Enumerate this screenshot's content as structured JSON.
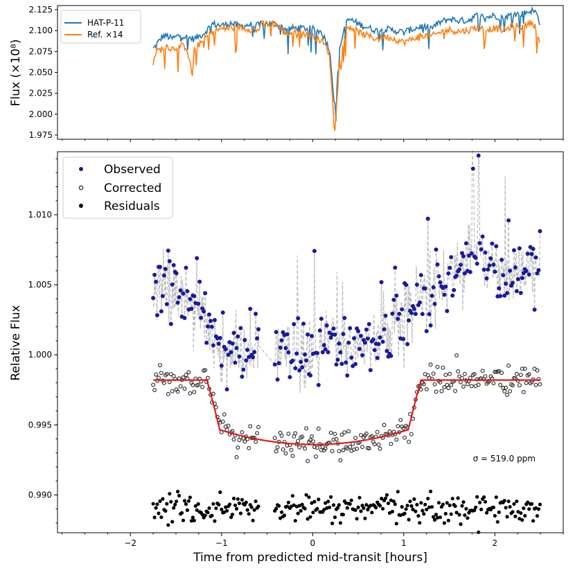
{
  "chart_data": [
    {
      "type": "line",
      "ylabel": "Flux (×10⁸)",
      "ylim": [
        1.97,
        2.13
      ],
      "xlim": [
        -2.8,
        2.75
      ],
      "yticks": [
        "1.975",
        "2.000",
        "2.025",
        "2.050",
        "2.075",
        "2.100",
        "2.125"
      ],
      "grid": false,
      "legend_position": "top-left",
      "series": [
        {
          "name": "HAT-P-11",
          "color": "#1f77b4",
          "points": [
            [
              -1.75,
              2.078
            ],
            [
              -1.72,
              2.082
            ],
            [
              -1.65,
              2.093
            ],
            [
              -1.6,
              2.094
            ],
            [
              -1.55,
              2.09
            ],
            [
              -1.45,
              2.095
            ],
            [
              -1.38,
              2.092
            ],
            [
              -1.3,
              2.09
            ],
            [
              -1.2,
              2.096
            ],
            [
              -1.1,
              2.108
            ],
            [
              -1.0,
              2.106
            ],
            [
              -0.9,
              2.109
            ],
            [
              -0.8,
              2.105
            ],
            [
              -0.7,
              2.107
            ],
            [
              -0.6,
              2.106
            ],
            [
              -0.55,
              2.108
            ],
            [
              -0.4,
              2.108
            ],
            [
              -0.3,
              2.102
            ],
            [
              -0.2,
              2.103
            ],
            [
              -0.1,
              2.103
            ],
            [
              0.0,
              2.102
            ],
            [
              0.1,
              2.098
            ],
            [
              0.18,
              2.08
            ],
            [
              0.2,
              2.062
            ],
            [
              0.24,
              2.01
            ],
            [
              0.26,
              2.025
            ],
            [
              0.3,
              2.08
            ],
            [
              0.35,
              2.105
            ],
            [
              0.4,
              2.114
            ],
            [
              0.5,
              2.108
            ],
            [
              0.6,
              2.104
            ],
            [
              0.7,
              2.1
            ],
            [
              0.8,
              2.102
            ],
            [
              0.9,
              2.1
            ],
            [
              1.0,
              2.098
            ],
            [
              1.1,
              2.102
            ],
            [
              1.2,
              2.105
            ],
            [
              1.3,
              2.103
            ],
            [
              1.4,
              2.11
            ],
            [
              1.5,
              2.114
            ],
            [
              1.6,
              2.112
            ],
            [
              1.7,
              2.112
            ],
            [
              1.8,
              2.118
            ],
            [
              1.9,
              2.116
            ],
            [
              2.0,
              2.118
            ],
            [
              2.1,
              2.115
            ],
            [
              2.2,
              2.12
            ],
            [
              2.3,
              2.12
            ],
            [
              2.4,
              2.124
            ],
            [
              2.45,
              2.122
            ],
            [
              2.5,
              2.108
            ]
          ]
        },
        {
          "name": "Ref. ×14",
          "color": "#ff7f0e",
          "points": [
            [
              -1.75,
              2.06
            ],
            [
              -1.72,
              2.075
            ],
            [
              -1.65,
              2.078
            ],
            [
              -1.6,
              2.082
            ],
            [
              -1.55,
              2.078
            ],
            [
              -1.45,
              2.082
            ],
            [
              -1.38,
              2.08
            ],
            [
              -1.32,
              2.046
            ],
            [
              -1.3,
              2.078
            ],
            [
              -1.2,
              2.088
            ],
            [
              -1.1,
              2.1
            ],
            [
              -1.0,
              2.102
            ],
            [
              -0.9,
              2.103
            ],
            [
              -0.8,
              2.104
            ],
            [
              -0.7,
              2.102
            ],
            [
              -0.6,
              2.1
            ],
            [
              -0.55,
              2.108
            ],
            [
              -0.4,
              2.108
            ],
            [
              -0.3,
              2.096
            ],
            [
              -0.2,
              2.098
            ],
            [
              -0.1,
              2.097
            ],
            [
              0.0,
              2.093
            ],
            [
              0.1,
              2.088
            ],
            [
              0.18,
              2.074
            ],
            [
              0.2,
              2.05
            ],
            [
              0.24,
              1.976
            ],
            [
              0.26,
              2.01
            ],
            [
              0.3,
              2.07
            ],
            [
              0.35,
              2.098
            ],
            [
              0.4,
              2.106
            ],
            [
              0.5,
              2.098
            ],
            [
              0.6,
              2.094
            ],
            [
              0.7,
              2.09
            ],
            [
              0.8,
              2.093
            ],
            [
              0.9,
              2.09
            ],
            [
              1.0,
              2.086
            ],
            [
              1.1,
              2.09
            ],
            [
              1.2,
              2.095
            ],
            [
              1.3,
              2.093
            ],
            [
              1.4,
              2.098
            ],
            [
              1.5,
              2.101
            ],
            [
              1.6,
              2.099
            ],
            [
              1.7,
              2.1
            ],
            [
              1.8,
              2.104
            ],
            [
              1.9,
              2.101
            ],
            [
              2.0,
              2.103
            ],
            [
              2.1,
              2.1
            ],
            [
              2.2,
              2.106
            ],
            [
              2.3,
              2.104
            ],
            [
              2.4,
              2.11
            ],
            [
              2.45,
              2.104
            ],
            [
              2.5,
              2.085
            ]
          ]
        }
      ]
    },
    {
      "type": "scatter",
      "xlabel": "Time from predicted mid-transit [hours]",
      "ylabel": "Relative Flux",
      "xlim": [
        -2.8,
        2.75
      ],
      "ylim": [
        0.9873,
        1.0145
      ],
      "xticks": [
        "−2",
        "−1",
        "0",
        "1",
        "2"
      ],
      "yticks": [
        "0.990",
        "0.995",
        "1.000",
        "1.005",
        "1.010"
      ],
      "grid": false,
      "legend_position": "top-left",
      "annotation": "σ = 519.0 ppm",
      "series": [
        {
          "name": "Observed",
          "color": "#1a1a9c",
          "marker": "filled-circle",
          "trend": [
            [
              -1.75,
              1.0045
            ],
            [
              -1.5,
              1.0045
            ],
            [
              -1.2,
              1.0032
            ],
            [
              -1.0,
              1.0
            ],
            [
              -0.7,
              1.0
            ],
            [
              -0.6,
              0.9996
            ],
            [
              -0.4,
              1.0003
            ],
            [
              -0.2,
              0.9998
            ],
            [
              0.0,
              0.9998
            ],
            [
              0.1,
              1.0003
            ],
            [
              0.2,
              1.0015
            ],
            [
              0.3,
              1.0005
            ],
            [
              0.5,
              1.0008
            ],
            [
              0.8,
              1.0012
            ],
            [
              1.0,
              1.0025
            ],
            [
              1.2,
              1.0045
            ],
            [
              1.5,
              1.0055
            ],
            [
              1.8,
              1.0075
            ],
            [
              2.0,
              1.0065
            ],
            [
              2.2,
              1.0055
            ],
            [
              2.5,
              1.006
            ]
          ],
          "scatter_std": 0.0012
        },
        {
          "name": "Corrected",
          "color": "#333333",
          "marker": "open-circle",
          "scatter_std": 0.0005
        },
        {
          "name": "Residuals",
          "color": "#000000",
          "marker": "filled-circle",
          "center": 0.989,
          "scatter_std": 0.0005
        },
        {
          "name": "transit model",
          "color": "#e41a1c",
          "baseline": 0.9982,
          "t1": -1.16,
          "t2": -1.02,
          "t3": 1.05,
          "t4": 1.19,
          "bottom": 0.9936
        }
      ],
      "gap": [
        -0.58,
        -0.42
      ],
      "x_range": [
        -1.75,
        2.5
      ]
    }
  ]
}
